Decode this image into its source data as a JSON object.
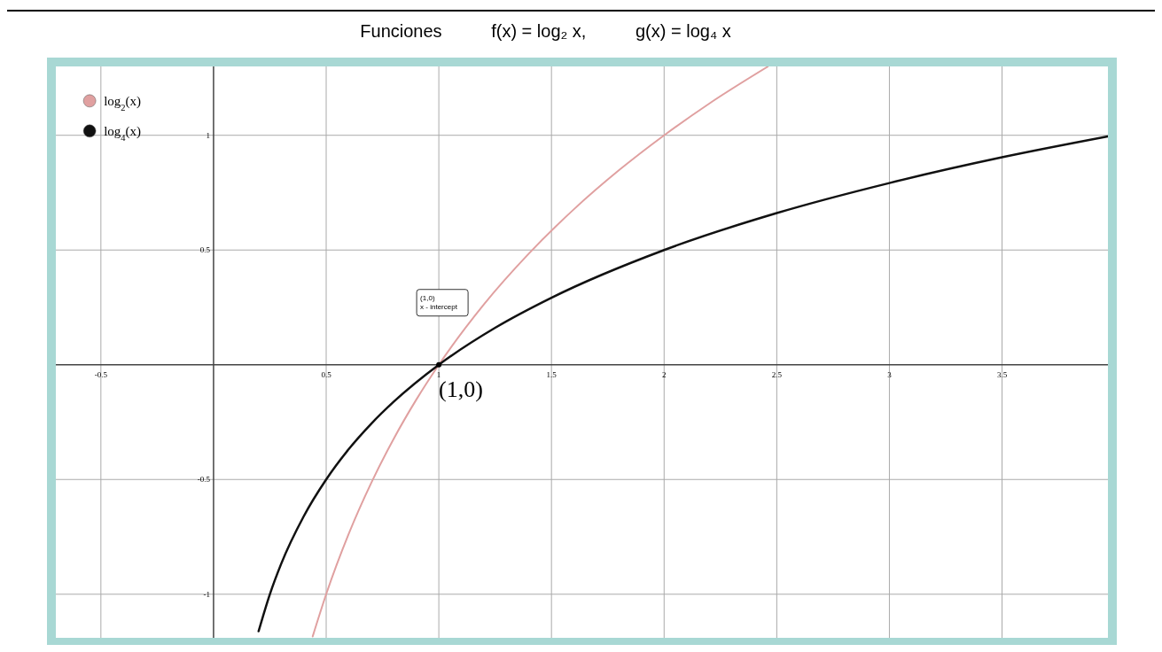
{
  "chart_data": {
    "type": "line",
    "title": "Funciones          f(x) = log₂ x,          g(x) = log₄ x",
    "xlim": [
      -0.7,
      3.97
    ],
    "ylim": [
      -1.19,
      1.3
    ],
    "xticks": [
      -0.5,
      0.5,
      1,
      1.5,
      2,
      2.5,
      3,
      3.5
    ],
    "yticks": [
      -1,
      -0.5,
      0.5,
      1
    ],
    "grid": true,
    "legend": "top left",
    "marker": "none",
    "line_style": "solid",
    "series": [
      {
        "name": "log$_{2}$(x)",
        "color": "#e0a0a0",
        "x": [
          0.44,
          0.5,
          0.6,
          0.7,
          0.8,
          0.9,
          1,
          1.2,
          1.4,
          1.6,
          1.8,
          2,
          2.2,
          2.46
        ],
        "values": [
          -1.184,
          -1,
          -0.737,
          -0.515,
          -0.322,
          -0.152,
          0,
          0.263,
          0.485,
          0.678,
          0.848,
          1,
          1.138,
          1.299
        ]
      },
      {
        "name": "log$_{4}$(x)",
        "color": "#111111",
        "x": [
          0.2,
          0.25,
          0.3,
          0.4,
          0.5,
          0.6,
          0.7,
          0.8,
          1,
          1.25,
          1.5,
          2,
          2.5,
          3,
          3.5,
          3.97
        ],
        "values": [
          -1.161,
          -1,
          -0.868,
          -0.661,
          -0.5,
          -0.368,
          -0.257,
          -0.161,
          0,
          0.161,
          0.292,
          0.5,
          0.661,
          0.792,
          0.904,
          0.995
        ]
      }
    ],
    "annotations": [
      {
        "text": "(1,0)",
        "x": 1,
        "y": 0
      },
      "(1,0)\nx - intercept"
    ]
  }
}
